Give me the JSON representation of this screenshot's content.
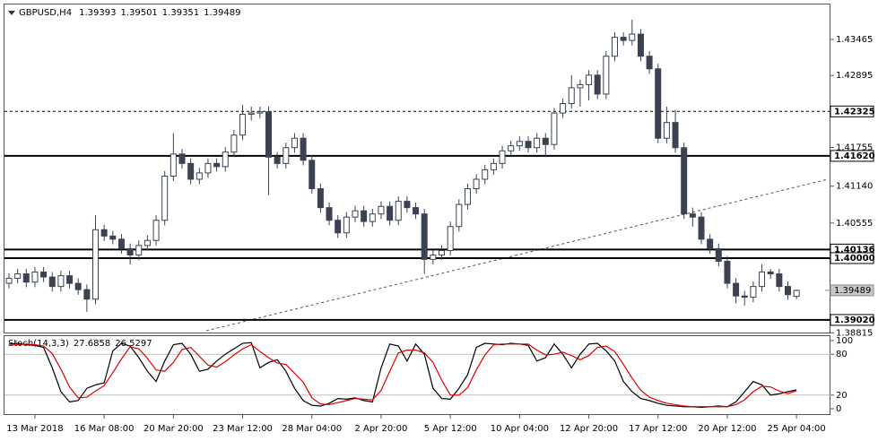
{
  "chart_data": [
    {
      "type": "candlestick",
      "title": "GBPUSD,H4",
      "color": "#3b4352",
      "categories": [
        null,
        null,
        null,
        "13 Mar 2018",
        null,
        null,
        null,
        null,
        null,
        null,
        null,
        "16 Mar 08:00",
        null,
        null,
        null,
        null,
        null,
        null,
        null,
        "20 Mar 20:00",
        null,
        null,
        null,
        null,
        null,
        null,
        null,
        "23 Mar 12:00",
        null,
        null,
        null,
        null,
        null,
        null,
        null,
        "28 Mar 04:00",
        null,
        null,
        null,
        null,
        null,
        null,
        null,
        "2 Apr 20:00",
        null,
        null,
        null,
        null,
        null,
        null,
        null,
        "5 Apr 12:00",
        null,
        null,
        null,
        null,
        null,
        null,
        null,
        "10 Apr 04:00",
        null,
        null,
        null,
        null,
        null,
        null,
        null,
        "12 Apr 20:00",
        null,
        null,
        null,
        null,
        null,
        null,
        null,
        "17 Apr 12:00",
        null,
        null,
        null,
        null,
        null,
        null,
        null,
        "20 Apr 12:00",
        null,
        null,
        null,
        null,
        null,
        null,
        null,
        "25 Apr 04:00"
      ],
      "open": [
        1.396,
        1.3968,
        1.3975,
        1.3962,
        1.3978,
        1.397,
        1.3955,
        1.3972,
        1.396,
        1.395,
        1.3935,
        1.4045,
        1.4035,
        1.403,
        1.4015,
        1.4005,
        1.402,
        1.4028,
        1.406,
        1.413,
        1.4165,
        1.415,
        1.4125,
        1.4135,
        1.415,
        1.4145,
        1.4168,
        1.4195,
        1.4228,
        1.423,
        1.4232,
        1.416,
        1.415,
        1.4175,
        1.419,
        1.4155,
        1.411,
        1.408,
        1.406,
        1.404,
        1.4065,
        1.4075,
        1.4058,
        1.407,
        1.4082,
        1.406,
        1.409,
        1.408,
        1.407,
        1.3998,
        1.4005,
        1.4012,
        1.405,
        1.4085,
        1.411,
        1.4125,
        1.414,
        1.415,
        1.417,
        1.4178,
        1.4185,
        1.4175,
        1.419,
        1.418,
        1.423,
        1.4245,
        1.427,
        1.4275,
        1.429,
        1.426,
        1.432,
        1.435,
        1.4345,
        1.4355,
        1.432,
        1.43,
        1.419,
        1.4215,
        1.4175,
        1.407,
        1.4065,
        1.403,
        1.4015,
        1.3995,
        1.396,
        1.394,
        1.3938,
        1.3955,
        1.3978,
        1.3975,
        1.3955,
        1.39393
      ],
      "high": [
        1.3976,
        1.3983,
        1.3983,
        1.3986,
        1.3986,
        1.3978,
        1.398,
        1.398,
        1.3968,
        1.3958,
        1.4068,
        1.4053,
        1.4043,
        1.4038,
        1.4023,
        1.4028,
        1.4036,
        1.4068,
        1.4138,
        1.4198,
        1.4173,
        1.4158,
        1.4143,
        1.4158,
        1.4158,
        1.4176,
        1.4203,
        1.4243,
        1.424,
        1.424,
        1.424,
        1.4168,
        1.4183,
        1.4198,
        1.4198,
        1.4163,
        1.4118,
        1.4088,
        1.4068,
        1.4073,
        1.4083,
        1.4083,
        1.4078,
        1.409,
        1.409,
        1.4098,
        1.4098,
        1.4088,
        1.4078,
        1.4013,
        1.402,
        1.4058,
        1.4093,
        1.4118,
        1.4133,
        1.4148,
        1.4158,
        1.4178,
        1.4186,
        1.4193,
        1.4193,
        1.4198,
        1.4198,
        1.4238,
        1.4253,
        1.429,
        1.4283,
        1.4298,
        1.4298,
        1.4328,
        1.4358,
        1.4358,
        1.4378,
        1.4363,
        1.4328,
        1.4308,
        1.424,
        1.4235,
        1.4183,
        1.408,
        1.4073,
        1.4038,
        1.4023,
        1.4003,
        1.3968,
        1.3948,
        1.3963,
        1.399,
        1.3983,
        1.3983,
        1.3963,
        1.39501
      ],
      "low": [
        1.3952,
        1.396,
        1.3954,
        1.3954,
        1.3962,
        1.3947,
        1.3947,
        1.3952,
        1.3942,
        1.3915,
        1.3927,
        1.4027,
        1.4022,
        1.4007,
        1.399,
        1.3997,
        1.4012,
        1.402,
        1.4052,
        1.4122,
        1.4142,
        1.4117,
        1.4117,
        1.4127,
        1.4137,
        1.4137,
        1.416,
        1.4187,
        1.4218,
        1.4222,
        1.41,
        1.4142,
        1.4142,
        1.4167,
        1.4147,
        1.4102,
        1.4072,
        1.4052,
        1.4032,
        1.4032,
        1.4057,
        1.405,
        1.405,
        1.4062,
        1.4052,
        1.4052,
        1.4072,
        1.4062,
        1.3975,
        1.399,
        1.3997,
        1.4004,
        1.4042,
        1.4077,
        1.4102,
        1.4117,
        1.4132,
        1.4142,
        1.4162,
        1.417,
        1.4167,
        1.4167,
        1.416,
        1.4172,
        1.4222,
        1.4237,
        1.424,
        1.425,
        1.4252,
        1.4252,
        1.4312,
        1.4337,
        1.4337,
        1.4312,
        1.4292,
        1.4182,
        1.4182,
        1.4167,
        1.4062,
        1.405,
        1.4022,
        1.4007,
        1.3987,
        1.3952,
        1.3928,
        1.3925,
        1.393,
        1.3947,
        1.3967,
        1.3947,
        1.3934,
        1.39351
      ],
      "close": [
        1.3968,
        1.3975,
        1.3962,
        1.3978,
        1.397,
        1.3955,
        1.3972,
        1.396,
        1.395,
        1.3935,
        1.4045,
        1.4035,
        1.403,
        1.4015,
        1.4005,
        1.402,
        1.4028,
        1.406,
        1.413,
        1.4165,
        1.415,
        1.4125,
        1.4135,
        1.415,
        1.4145,
        1.4168,
        1.4195,
        1.4228,
        1.423,
        1.4232,
        1.416,
        1.415,
        1.4175,
        1.419,
        1.4155,
        1.411,
        1.408,
        1.406,
        1.404,
        1.4065,
        1.4075,
        1.4058,
        1.407,
        1.4082,
        1.406,
        1.409,
        1.408,
        1.407,
        1.3998,
        1.4005,
        1.4012,
        1.405,
        1.4085,
        1.411,
        1.4125,
        1.414,
        1.415,
        1.417,
        1.4178,
        1.4185,
        1.4175,
        1.419,
        1.418,
        1.423,
        1.4245,
        1.427,
        1.4275,
        1.429,
        1.426,
        1.432,
        1.435,
        1.4345,
        1.4355,
        1.432,
        1.43,
        1.419,
        1.4215,
        1.4175,
        1.407,
        1.4065,
        1.403,
        1.4015,
        1.3995,
        1.396,
        1.394,
        1.3938,
        1.3955,
        1.3978,
        1.3975,
        1.3955,
        1.3942,
        1.39489
      ],
      "ylim": [
        1.3882,
        1.4402
      ],
      "yticks": [
        1.43465,
        1.42895,
        1.41755,
        {
          "value": 1.4114,
          "label": "1.41140"
        },
        1.40555,
        1.38815
      ],
      "dashed_level": 1.42325,
      "levels": [
        {
          "value": 1.4162,
          "label": "1.41620"
        },
        1.40136,
        {
          "value": 1.4,
          "label": "1.40000"
        },
        {
          "value": 1.3902,
          "label": "1.39020"
        }
      ]
    },
    {
      "type": "line",
      "title": "Stoch(14,3,3)",
      "ylim": [
        0,
        100
      ],
      "yticks": [
        0,
        20,
        80,
        100
      ],
      "series": [
        {
          "color": "#000000",
          "values": [
            95,
            96,
            94,
            93,
            90,
            60,
            25,
            10,
            12,
            30,
            35,
            38,
            85,
            96,
            92,
            75,
            55,
            40,
            70,
            94,
            96,
            80,
            55,
            58,
            70,
            80,
            88,
            96,
            97,
            60,
            68,
            72,
            55,
            30,
            12,
            5,
            4,
            8,
            15,
            14,
            16,
            12,
            10,
            60,
            95,
            92,
            70,
            95,
            80,
            30,
            15,
            14,
            30,
            50,
            90,
            96,
            95,
            94,
            96,
            95,
            93,
            70,
            75,
            95,
            80,
            60,
            80,
            95,
            96,
            85,
            70,
            40,
            25,
            15,
            12,
            8,
            5,
            4,
            3,
            3,
            2,
            3,
            4,
            3,
            10,
            25,
            40,
            35,
            20,
            22,
            25,
            27.6858
          ]
        },
        {
          "color": "#e00000",
          "values": [
            93,
            94,
            95,
            94,
            92,
            81,
            58,
            32,
            16,
            17,
            26,
            34,
            53,
            73,
            91,
            88,
            74,
            57,
            55,
            68,
            87,
            90,
            77,
            64,
            61,
            69,
            79,
            88,
            94,
            84,
            75,
            67,
            65,
            52,
            39,
            16,
            7,
            6,
            9,
            12,
            15,
            14,
            13,
            27,
            55,
            82,
            86,
            86,
            82,
            68,
            42,
            20,
            20,
            31,
            57,
            79,
            94,
            95,
            95,
            95,
            95,
            86,
            79,
            80,
            83,
            78,
            72,
            78,
            90,
            92,
            84,
            65,
            45,
            27,
            17,
            12,
            8,
            6,
            4,
            3,
            3,
            3,
            3,
            3,
            6,
            13,
            25,
            33,
            32,
            26,
            22,
            26.5297
          ]
        }
      ]
    }
  ]
}
